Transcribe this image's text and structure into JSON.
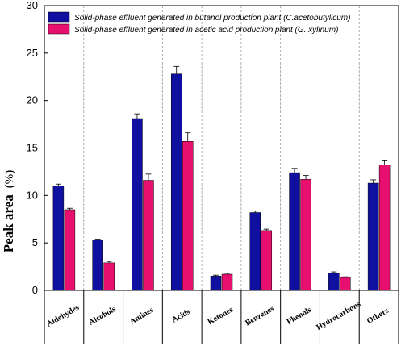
{
  "chart_data": {
    "type": "bar",
    "categories": [
      "Aldehydes",
      "Alcohols",
      "Amines",
      "Acids",
      "Ketones",
      "Benzenes",
      "Phenols",
      "Hydrocarbons",
      "Others"
    ],
    "series": [
      {
        "name": "Solid-phase effluent generated in butanol production plant (C.acetobutylicum)",
        "color": "#1010a0",
        "values": [
          11.0,
          5.3,
          18.1,
          22.8,
          1.5,
          8.2,
          12.4,
          1.8,
          11.3
        ],
        "errors": [
          0.2,
          0.1,
          0.5,
          0.8,
          0.1,
          0.15,
          0.45,
          0.15,
          0.35
        ]
      },
      {
        "name": "Solid-phase effluent generated in acetic acid production plant (G. xylinum)",
        "color": "#e8106e",
        "values": [
          8.5,
          2.9,
          11.6,
          15.7,
          1.7,
          6.3,
          11.7,
          1.35,
          13.2
        ],
        "errors": [
          0.15,
          0.15,
          0.65,
          0.9,
          0.1,
          0.15,
          0.4,
          0.08,
          0.45
        ]
      }
    ],
    "ylabel_main": "Peak area",
    "ylabel_unit": "(%)",
    "ylim": [
      0,
      30
    ],
    "yticks": [
      0,
      5,
      10,
      15,
      20,
      25,
      30
    ],
    "grid": "vertical-dashed-between-categories",
    "legend_position": "top-center"
  }
}
